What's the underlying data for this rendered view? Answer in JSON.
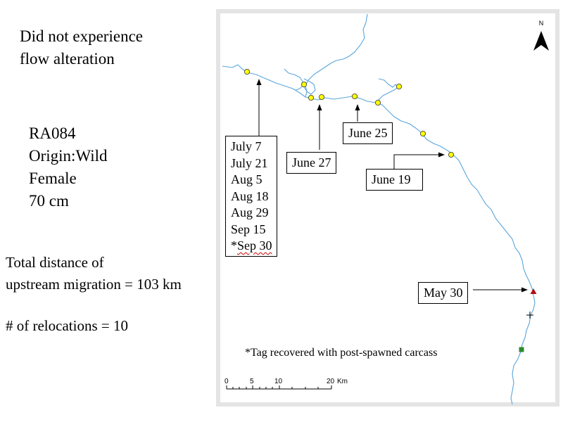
{
  "flow_note": [
    "Did not experience",
    "flow alteration"
  ],
  "fish": {
    "id": "RA084",
    "origin": "Origin:Wild",
    "sex": "Female",
    "length": "70 cm"
  },
  "distance_lines": [
    "Total distance of",
    "upstream migration = 103 km"
  ],
  "relocations": "# of relocations = 10",
  "map": {
    "north_label": "N",
    "date_labels": {
      "upper_group": [
        "July 7",
        "July 21",
        "Aug 5",
        "Aug 18",
        "Aug 29",
        "Sep 15"
      ],
      "upper_group_last_marker": "*",
      "upper_group_last": "Sep 30",
      "june27": "June 27",
      "june25": "June 25",
      "june19": "June 19",
      "may30": "May 30"
    },
    "tag_note": "*Tag recovered with post-spawned carcass",
    "scale_bar": {
      "ticks": [
        "0",
        "5",
        "10",
        "20"
      ],
      "unit": "Km"
    },
    "colors": {
      "river": "#5aa6dc",
      "relocation_point": "#ffff00",
      "release_point": "#b01010",
      "station_marker": "#2e8b2e"
    },
    "symbols": {
      "relocation_point": "circle",
      "release_point": "triangle",
      "station_marker": "square",
      "crossing_marker": "plus"
    }
  }
}
